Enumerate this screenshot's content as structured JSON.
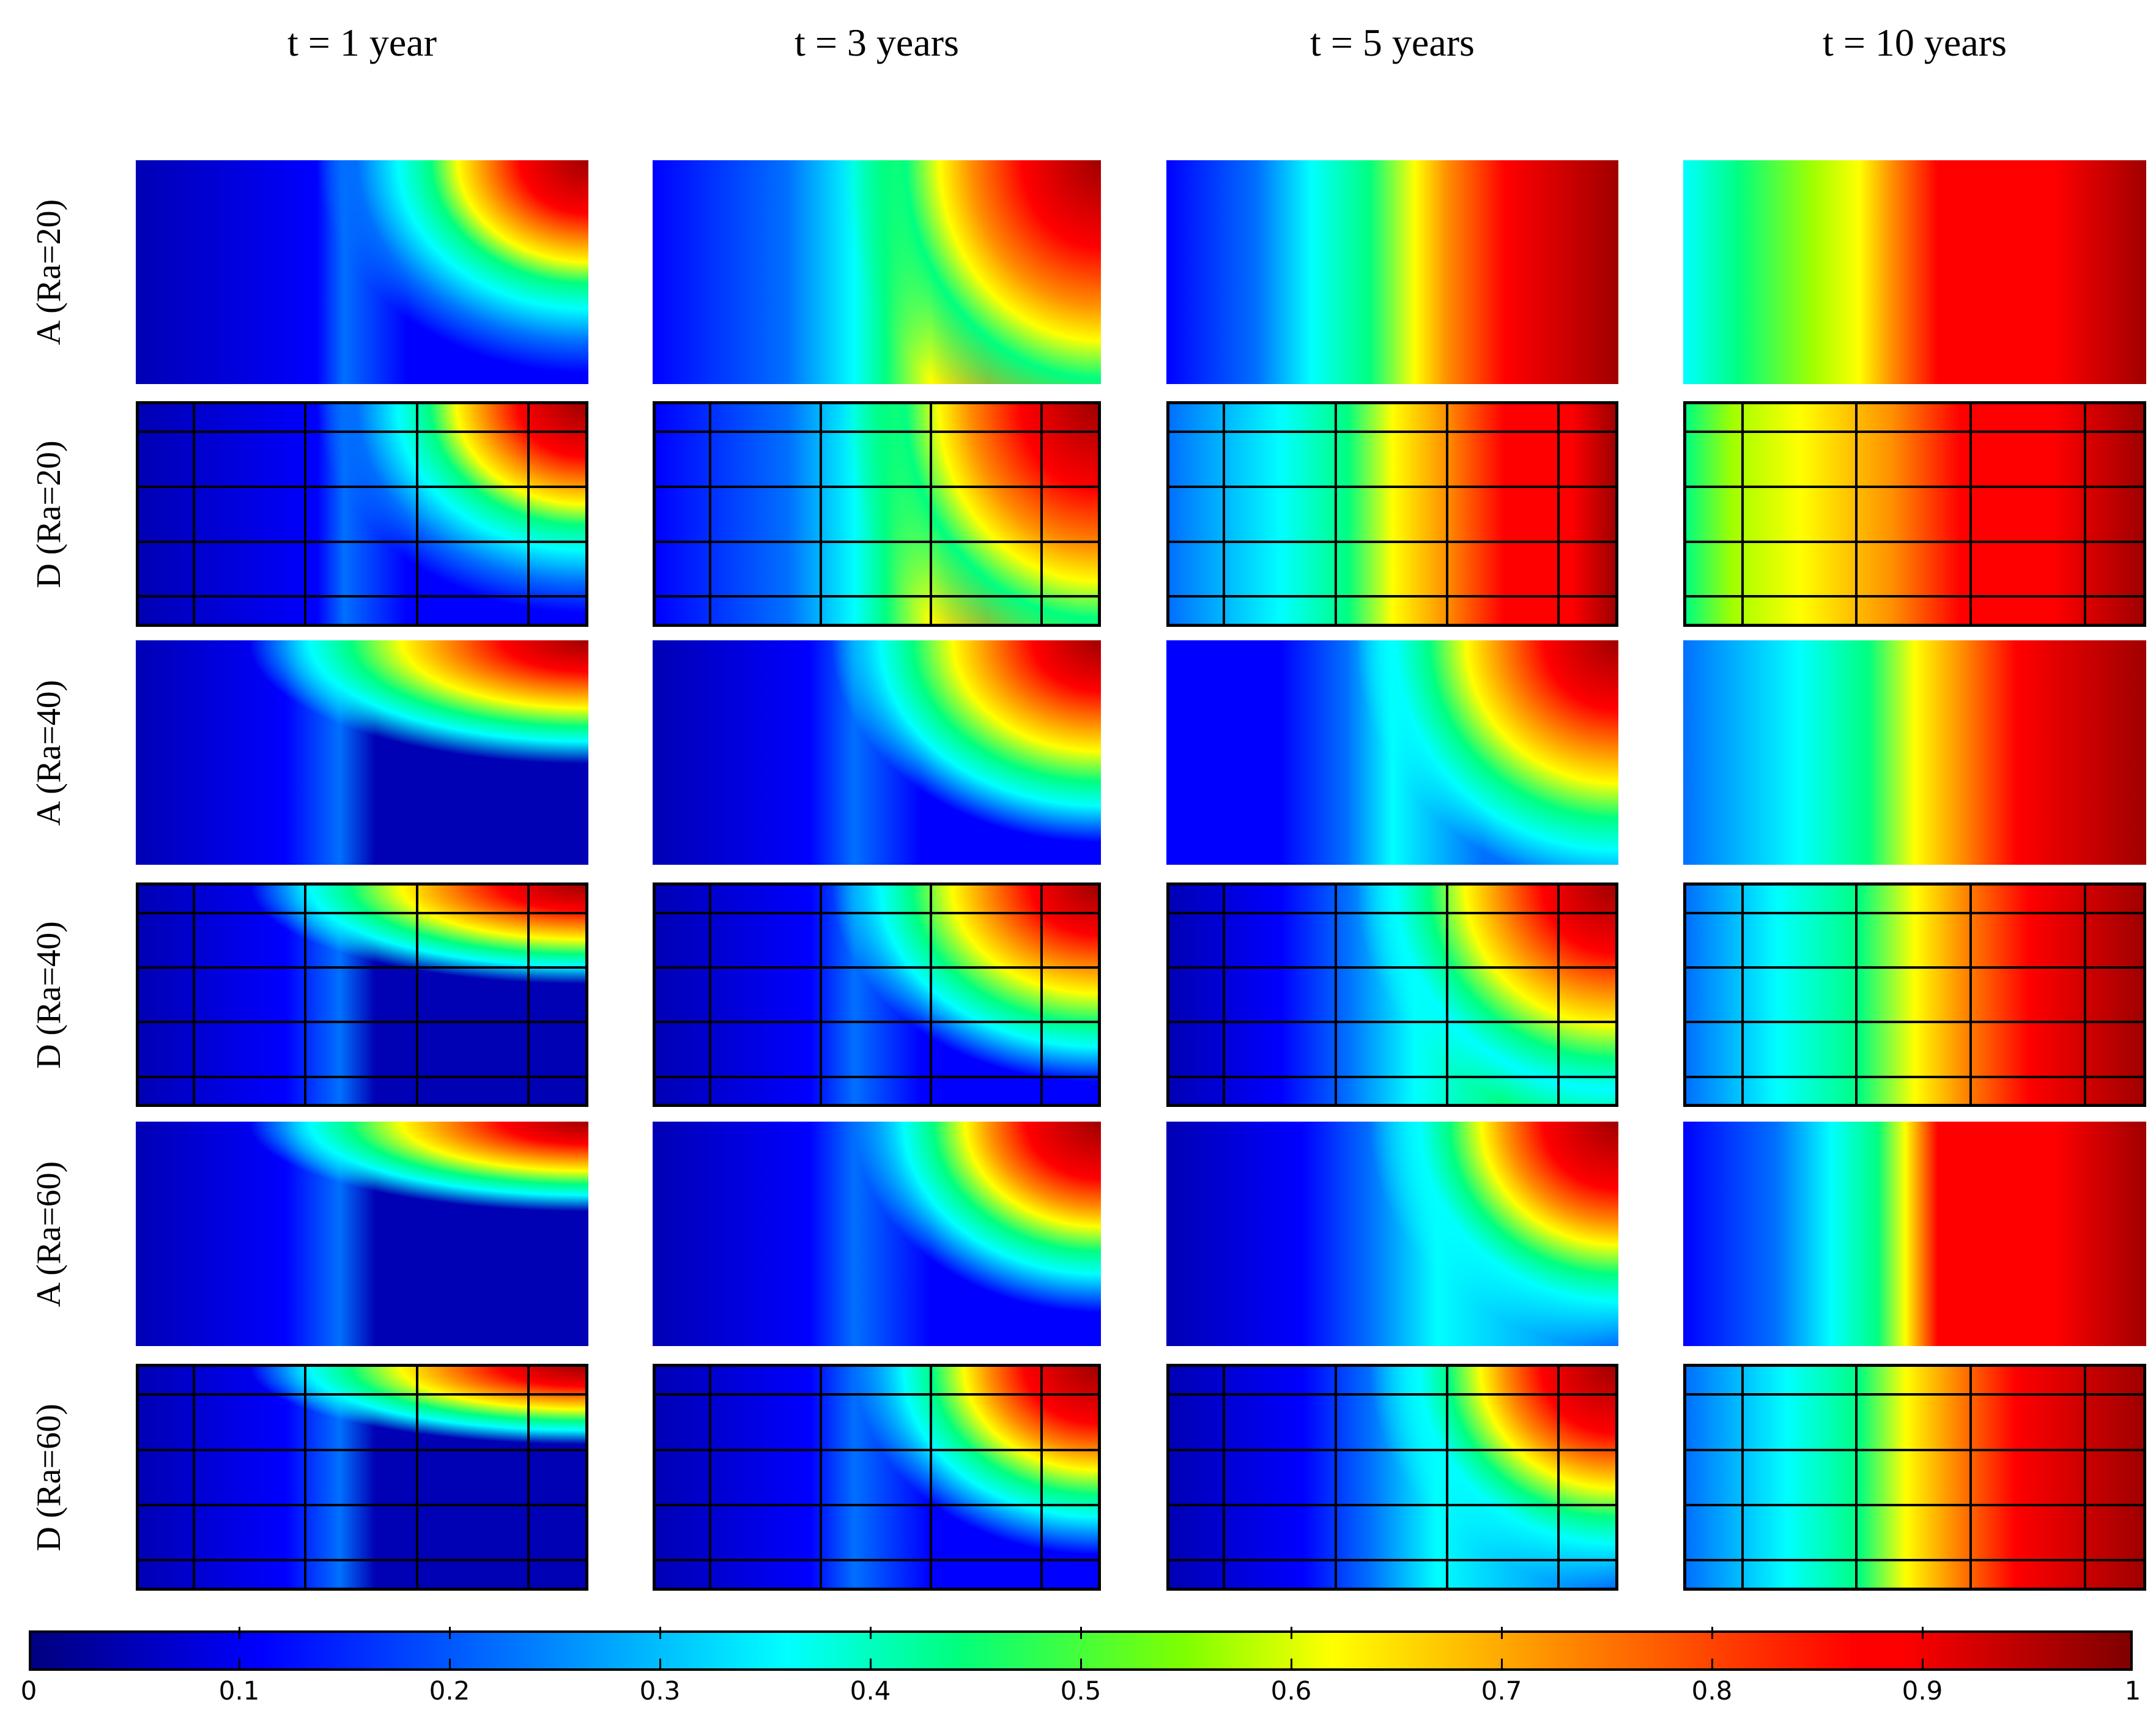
{
  "chart_data": {
    "type": "heatmap",
    "title": "",
    "columns": [
      "t = 1 year",
      "t = 3 years",
      "t = 5 years",
      "t = 10 years"
    ],
    "rows": [
      "A (Ra=20)",
      "D (Ra=20)",
      "A (Ra=40)",
      "D (Ra=40)",
      "A (Ra=60)",
      "D (Ra=60)"
    ],
    "colorbar": {
      "min": 0,
      "max": 1,
      "ticks": [
        "0",
        "0.1",
        "0.2",
        "0.3",
        "0.4",
        "0.5",
        "0.6",
        "0.7",
        "0.8",
        "0.9",
        "1"
      ],
      "colormap": "jet"
    },
    "grid_overlay_rows": [
      "D (Ra=20)",
      "D (Ra=40)",
      "D (Ra=60)"
    ],
    "grid_fractions": {
      "x": [
        0.12,
        0.37,
        0.62,
        0.87
      ],
      "y": [
        0.12,
        0.37,
        0.62,
        0.87
      ]
    }
  },
  "headers": {
    "c0": "t = 1 year",
    "c1": "t = 3 years",
    "c2": "t = 5 years",
    "c3": "t = 10 years"
  },
  "row_labels": {
    "r0": "A (Ra=20)",
    "r1": "D (Ra=20)",
    "r2": "A (Ra=40)",
    "r3": "D (Ra=40)",
    "r4": "A (Ra=60)",
    "r5": "D (Ra=60)"
  },
  "colorbar_ticks": [
    "0",
    "0.1",
    "0.2",
    "0.3",
    "0.4",
    "0.5",
    "0.6",
    "0.7",
    "0.8",
    "0.9",
    "1"
  ],
  "colors": {
    "dark_blue": "#00007f",
    "blue": "#0000ff",
    "cyan": "#00ffff",
    "green": "#00ff7f",
    "yellow": "#ffff00",
    "red": "#ff0000",
    "dark_red": "#7f0000"
  }
}
